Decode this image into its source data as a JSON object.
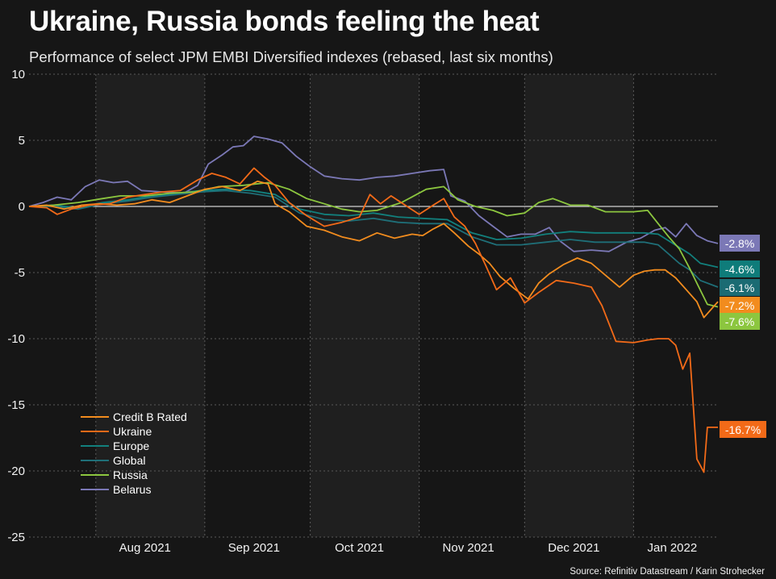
{
  "header": {
    "title": "Ukraine, Russia bonds feeling the heat",
    "subtitle": "Performance of select JPM EMBI Diversified indexes (rebased, last six months)",
    "source": "Source: Refinitiv Datastream / Karin Strohecker"
  },
  "colors": {
    "background": "#161616",
    "plot_band": "#1f1f1f",
    "grid": "#5a5a5a",
    "zero_line": "#ffffff"
  },
  "chart_data": {
    "type": "line",
    "title": "Ukraine, Russia bonds feeling the heat",
    "subtitle": "Performance of select JPM EMBI Diversified indexes (rebased, last six months)",
    "xlabel": "",
    "ylabel": "",
    "x_range": [
      "2021-07-13",
      "2022-01-25"
    ],
    "ylim": [
      -25,
      10
    ],
    "y_ticks": [
      10,
      5,
      0,
      -5,
      -10,
      -15,
      -20,
      -25
    ],
    "x_ticks": [
      {
        "date": "2021-08-15",
        "label": "Aug 2021"
      },
      {
        "date": "2021-09-15",
        "label": "Sep 2021"
      },
      {
        "date": "2021-10-15",
        "label": "Oct 2021"
      },
      {
        "date": "2021-11-15",
        "label": "Nov 2021"
      },
      {
        "date": "2021-12-15",
        "label": "Dec 2021"
      },
      {
        "date": "2022-01-12",
        "label": "Jan 2022"
      }
    ],
    "month_bands": [
      [
        "2021-08-01",
        "2021-09-01"
      ],
      [
        "2021-10-01",
        "2021-11-01"
      ],
      [
        "2021-12-01",
        "2022-01-01"
      ]
    ],
    "gridlines_vertical": [
      "2021-08-01",
      "2021-09-01",
      "2021-10-01",
      "2021-11-01",
      "2021-12-01",
      "2022-01-01"
    ],
    "grid": true,
    "legend_position": "bottom-left",
    "series": [
      {
        "name": "Credit B Rated",
        "color": "#f28c1e",
        "end_label": "-7.2%",
        "points": [
          [
            "2021-07-13",
            0
          ],
          [
            "2021-07-18",
            0.1
          ],
          [
            "2021-07-23",
            -0.2
          ],
          [
            "2021-07-28",
            0.1
          ],
          [
            "2021-08-02",
            0.2
          ],
          [
            "2021-08-07",
            0.1
          ],
          [
            "2021-08-12",
            0.2
          ],
          [
            "2021-08-17",
            0.5
          ],
          [
            "2021-08-22",
            0.3
          ],
          [
            "2021-08-27",
            0.8
          ],
          [
            "2021-09-01",
            1.3
          ],
          [
            "2021-09-06",
            1.5
          ],
          [
            "2021-09-11",
            1.2
          ],
          [
            "2021-09-16",
            1.9
          ],
          [
            "2021-09-19",
            1.7
          ],
          [
            "2021-09-21",
            0.2
          ],
          [
            "2021-09-25",
            -0.4
          ],
          [
            "2021-09-30",
            -1.5
          ],
          [
            "2021-10-05",
            -1.8
          ],
          [
            "2021-10-10",
            -2.3
          ],
          [
            "2021-10-15",
            -2.6
          ],
          [
            "2021-10-20",
            -2.0
          ],
          [
            "2021-10-25",
            -2.4
          ],
          [
            "2021-10-30",
            -2.1
          ],
          [
            "2021-11-02",
            -2.2
          ],
          [
            "2021-11-05",
            -1.7
          ],
          [
            "2021-11-08",
            -1.3
          ],
          [
            "2021-11-11",
            -2.0
          ],
          [
            "2021-11-15",
            -3.0
          ],
          [
            "2021-11-18",
            -3.6
          ],
          [
            "2021-11-21",
            -4.3
          ],
          [
            "2021-11-24",
            -5.3
          ],
          [
            "2021-11-28",
            -6.2
          ],
          [
            "2021-12-02",
            -7.0
          ],
          [
            "2021-12-05",
            -5.8
          ],
          [
            "2021-12-08",
            -5.1
          ],
          [
            "2021-12-12",
            -4.4
          ],
          [
            "2021-12-16",
            -3.9
          ],
          [
            "2021-12-20",
            -4.3
          ],
          [
            "2021-12-24",
            -5.2
          ],
          [
            "2021-12-28",
            -6.1
          ],
          [
            "2022-01-01",
            -5.2
          ],
          [
            "2022-01-04",
            -4.9
          ],
          [
            "2022-01-07",
            -4.8
          ],
          [
            "2022-01-10",
            -4.8
          ],
          [
            "2022-01-13",
            -5.4
          ],
          [
            "2022-01-16",
            -6.3
          ],
          [
            "2022-01-19",
            -7.2
          ],
          [
            "2022-01-21",
            -8.4
          ],
          [
            "2022-01-25",
            -7.2
          ]
        ]
      },
      {
        "name": "Ukraine",
        "color": "#f26a18",
        "end_label": "-16.7%",
        "points": [
          [
            "2021-07-13",
            0
          ],
          [
            "2021-07-18",
            -0.1
          ],
          [
            "2021-07-21",
            -0.6
          ],
          [
            "2021-07-25",
            -0.2
          ],
          [
            "2021-07-30",
            0.1
          ],
          [
            "2021-08-05",
            0.2
          ],
          [
            "2021-08-10",
            0.7
          ],
          [
            "2021-08-15",
            0.9
          ],
          [
            "2021-08-20",
            1.1
          ],
          [
            "2021-08-25",
            1.2
          ],
          [
            "2021-08-30",
            2.0
          ],
          [
            "2021-09-03",
            2.5
          ],
          [
            "2021-09-07",
            2.2
          ],
          [
            "2021-09-11",
            1.7
          ],
          [
            "2021-09-15",
            2.9
          ],
          [
            "2021-09-18",
            2.2
          ],
          [
            "2021-09-21",
            1.6
          ],
          [
            "2021-09-25",
            0.3
          ],
          [
            "2021-09-30",
            -0.7
          ],
          [
            "2021-10-05",
            -1.5
          ],
          [
            "2021-10-10",
            -1.2
          ],
          [
            "2021-10-15",
            -0.8
          ],
          [
            "2021-10-18",
            0.9
          ],
          [
            "2021-10-21",
            0.2
          ],
          [
            "2021-10-24",
            0.8
          ],
          [
            "2021-10-28",
            0.1
          ],
          [
            "2021-11-01",
            -0.6
          ],
          [
            "2021-11-05",
            0.1
          ],
          [
            "2021-11-08",
            0.6
          ],
          [
            "2021-11-11",
            -0.8
          ],
          [
            "2021-11-14",
            -1.5
          ],
          [
            "2021-11-17",
            -2.8
          ],
          [
            "2021-11-20",
            -4.5
          ],
          [
            "2021-11-23",
            -6.3
          ],
          [
            "2021-11-27",
            -5.4
          ],
          [
            "2021-12-01",
            -7.3
          ],
          [
            "2021-12-05",
            -6.5
          ],
          [
            "2021-12-10",
            -5.6
          ],
          [
            "2021-12-15",
            -5.8
          ],
          [
            "2021-12-20",
            -6.1
          ],
          [
            "2021-12-23",
            -7.5
          ],
          [
            "2021-12-27",
            -10.2
          ],
          [
            "2022-01-01",
            -10.3
          ],
          [
            "2022-01-05",
            -10.1
          ],
          [
            "2022-01-08",
            -10.0
          ],
          [
            "2022-01-11",
            -10.0
          ],
          [
            "2022-01-13",
            -10.5
          ],
          [
            "2022-01-15",
            -12.3
          ],
          [
            "2022-01-17",
            -11.1
          ],
          [
            "2022-01-19",
            -19.1
          ],
          [
            "2022-01-21",
            -20.1
          ],
          [
            "2022-01-22",
            -16.7
          ],
          [
            "2022-01-25",
            -16.7
          ]
        ]
      },
      {
        "name": "Europe",
        "color": "#12807d",
        "end_label": "-4.6%",
        "points": [
          [
            "2021-07-13",
            0
          ],
          [
            "2021-07-20",
            0.1
          ],
          [
            "2021-07-27",
            -0.1
          ],
          [
            "2021-08-03",
            0.3
          ],
          [
            "2021-08-10",
            0.5
          ],
          [
            "2021-08-17",
            0.8
          ],
          [
            "2021-08-24",
            1.0
          ],
          [
            "2021-08-31",
            1.2
          ],
          [
            "2021-09-07",
            1.3
          ],
          [
            "2021-09-14",
            1.2
          ],
          [
            "2021-09-21",
            0.9
          ],
          [
            "2021-09-28",
            -0.2
          ],
          [
            "2021-10-05",
            -0.6
          ],
          [
            "2021-10-12",
            -0.7
          ],
          [
            "2021-10-19",
            -0.5
          ],
          [
            "2021-10-26",
            -0.8
          ],
          [
            "2021-11-02",
            -0.9
          ],
          [
            "2021-11-09",
            -1.0
          ],
          [
            "2021-11-16",
            -2.0
          ],
          [
            "2021-11-23",
            -2.5
          ],
          [
            "2021-11-30",
            -2.4
          ],
          [
            "2021-12-07",
            -2.1
          ],
          [
            "2021-12-14",
            -1.9
          ],
          [
            "2021-12-21",
            -2.0
          ],
          [
            "2021-12-28",
            -2.0
          ],
          [
            "2022-01-04",
            -2.0
          ],
          [
            "2022-01-08",
            -2.1
          ],
          [
            "2022-01-11",
            -2.6
          ],
          [
            "2022-01-14",
            -3.1
          ],
          [
            "2022-01-17",
            -3.6
          ],
          [
            "2022-01-20",
            -4.3
          ],
          [
            "2022-01-25",
            -4.6
          ]
        ]
      },
      {
        "name": "Global",
        "color": "#1f6f78",
        "end_label": "-6.1%",
        "points": [
          [
            "2021-07-13",
            0
          ],
          [
            "2021-07-20",
            0.0
          ],
          [
            "2021-07-27",
            -0.2
          ],
          [
            "2021-08-03",
            0.2
          ],
          [
            "2021-08-10",
            0.4
          ],
          [
            "2021-08-17",
            0.7
          ],
          [
            "2021-08-24",
            0.9
          ],
          [
            "2021-08-31",
            1.1
          ],
          [
            "2021-09-07",
            1.2
          ],
          [
            "2021-09-14",
            1.0
          ],
          [
            "2021-09-21",
            0.7
          ],
          [
            "2021-09-28",
            -0.5
          ],
          [
            "2021-10-05",
            -1.0
          ],
          [
            "2021-10-12",
            -1.1
          ],
          [
            "2021-10-19",
            -0.9
          ],
          [
            "2021-10-26",
            -1.2
          ],
          [
            "2021-11-02",
            -1.3
          ],
          [
            "2021-11-09",
            -1.3
          ],
          [
            "2021-11-16",
            -2.3
          ],
          [
            "2021-11-23",
            -2.9
          ],
          [
            "2021-11-30",
            -2.9
          ],
          [
            "2021-12-07",
            -2.7
          ],
          [
            "2021-12-14",
            -2.5
          ],
          [
            "2021-12-21",
            -2.7
          ],
          [
            "2021-12-28",
            -2.7
          ],
          [
            "2022-01-04",
            -2.7
          ],
          [
            "2022-01-08",
            -2.9
          ],
          [
            "2022-01-11",
            -3.6
          ],
          [
            "2022-01-14",
            -4.3
          ],
          [
            "2022-01-17",
            -4.8
          ],
          [
            "2022-01-20",
            -5.6
          ],
          [
            "2022-01-25",
            -6.1
          ]
        ]
      },
      {
        "name": "Russia",
        "color": "#8cc63f",
        "end_label": "-7.6%",
        "points": [
          [
            "2021-07-13",
            0
          ],
          [
            "2021-07-20",
            0.1
          ],
          [
            "2021-07-27",
            0.3
          ],
          [
            "2021-08-03",
            0.6
          ],
          [
            "2021-08-08",
            0.8
          ],
          [
            "2021-08-15",
            0.8
          ],
          [
            "2021-08-22",
            1.0
          ],
          [
            "2021-08-29",
            1.1
          ],
          [
            "2021-09-05",
            1.5
          ],
          [
            "2021-09-12",
            1.6
          ],
          [
            "2021-09-19",
            1.8
          ],
          [
            "2021-09-25",
            1.3
          ],
          [
            "2021-09-30",
            0.6
          ],
          [
            "2021-10-05",
            0.2
          ],
          [
            "2021-10-10",
            -0.2
          ],
          [
            "2021-10-15",
            -0.4
          ],
          [
            "2021-10-20",
            -0.3
          ],
          [
            "2021-10-27",
            0.3
          ],
          [
            "2021-11-03",
            1.3
          ],
          [
            "2021-11-08",
            1.5
          ],
          [
            "2021-11-12",
            0.5
          ],
          [
            "2021-11-17",
            0.0
          ],
          [
            "2021-11-22",
            -0.3
          ],
          [
            "2021-11-26",
            -0.7
          ],
          [
            "2021-12-01",
            -0.5
          ],
          [
            "2021-12-05",
            0.3
          ],
          [
            "2021-12-09",
            0.6
          ],
          [
            "2021-12-14",
            0.1
          ],
          [
            "2021-12-19",
            0.1
          ],
          [
            "2021-12-24",
            -0.4
          ],
          [
            "2022-01-01",
            -0.4
          ],
          [
            "2022-01-05",
            -0.3
          ],
          [
            "2022-01-08",
            -1.3
          ],
          [
            "2022-01-11",
            -2.3
          ],
          [
            "2022-01-14",
            -3.2
          ],
          [
            "2022-01-17",
            -4.7
          ],
          [
            "2022-01-19",
            -5.8
          ],
          [
            "2022-01-22",
            -7.4
          ],
          [
            "2022-01-25",
            -7.6
          ]
        ]
      },
      {
        "name": "Belarus",
        "color": "#7b78b6",
        "end_label": "-2.8%",
        "points": [
          [
            "2021-07-13",
            0
          ],
          [
            "2021-07-17",
            0.3
          ],
          [
            "2021-07-21",
            0.7
          ],
          [
            "2021-07-25",
            0.5
          ],
          [
            "2021-07-29",
            1.5
          ],
          [
            "2021-08-02",
            2.0
          ],
          [
            "2021-08-06",
            1.8
          ],
          [
            "2021-08-10",
            1.9
          ],
          [
            "2021-08-14",
            1.2
          ],
          [
            "2021-08-20",
            1.1
          ],
          [
            "2021-08-26",
            1.0
          ],
          [
            "2021-08-30",
            1.6
          ],
          [
            "2021-09-02",
            3.2
          ],
          [
            "2021-09-06",
            3.9
          ],
          [
            "2021-09-09",
            4.5
          ],
          [
            "2021-09-12",
            4.6
          ],
          [
            "2021-09-15",
            5.3
          ],
          [
            "2021-09-19",
            5.1
          ],
          [
            "2021-09-23",
            4.8
          ],
          [
            "2021-09-27",
            3.8
          ],
          [
            "2021-10-01",
            3.0
          ],
          [
            "2021-10-05",
            2.3
          ],
          [
            "2021-10-10",
            2.1
          ],
          [
            "2021-10-15",
            2.0
          ],
          [
            "2021-10-20",
            2.2
          ],
          [
            "2021-10-25",
            2.3
          ],
          [
            "2021-10-30",
            2.5
          ],
          [
            "2021-11-04",
            2.7
          ],
          [
            "2021-11-08",
            2.8
          ],
          [
            "2021-11-10",
            0.8
          ],
          [
            "2021-11-14",
            0.4
          ],
          [
            "2021-11-18",
            -0.7
          ],
          [
            "2021-11-22",
            -1.5
          ],
          [
            "2021-11-26",
            -2.3
          ],
          [
            "2021-11-30",
            -2.1
          ],
          [
            "2021-12-04",
            -2.1
          ],
          [
            "2021-12-08",
            -1.6
          ],
          [
            "2021-12-11",
            -2.6
          ],
          [
            "2021-12-15",
            -3.4
          ],
          [
            "2021-12-20",
            -3.3
          ],
          [
            "2021-12-25",
            -3.4
          ],
          [
            "2021-12-30",
            -2.7
          ],
          [
            "2022-01-03",
            -2.4
          ],
          [
            "2022-01-07",
            -1.8
          ],
          [
            "2022-01-10",
            -1.6
          ],
          [
            "2022-01-13",
            -2.3
          ],
          [
            "2022-01-16",
            -1.3
          ],
          [
            "2022-01-19",
            -2.2
          ],
          [
            "2022-01-22",
            -2.6
          ],
          [
            "2022-01-25",
            -2.8
          ]
        ]
      }
    ]
  }
}
